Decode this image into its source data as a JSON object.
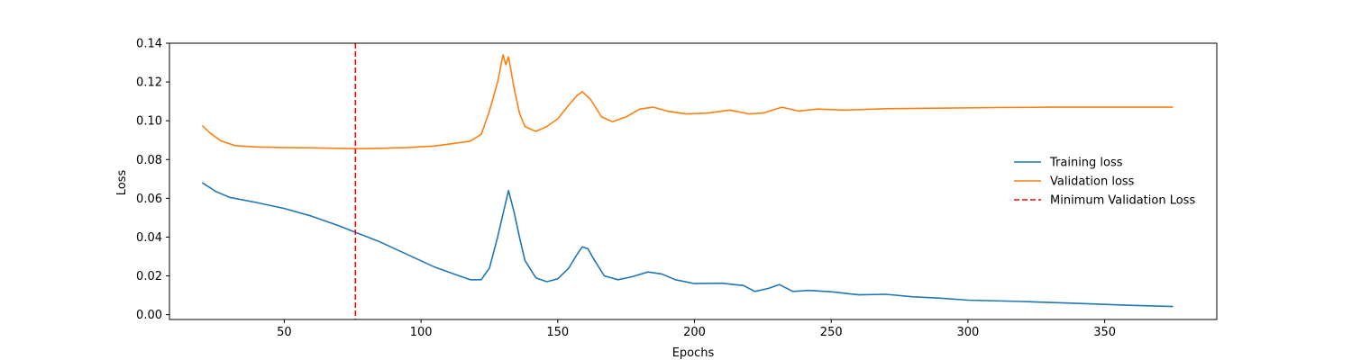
{
  "chart_data": {
    "type": "line",
    "title": "",
    "xlabel": "Epochs",
    "ylabel": "Loss",
    "xlim": [
      8,
      391
    ],
    "ylim": [
      -0.0025,
      0.14
    ],
    "xticks": [
      50,
      100,
      150,
      200,
      250,
      300,
      350
    ],
    "yticks": [
      0.0,
      0.02,
      0.04,
      0.06,
      0.08,
      0.1,
      0.12,
      0.14
    ],
    "ytick_labels": [
      "0.00",
      "0.02",
      "0.04",
      "0.06",
      "0.08",
      "0.10",
      "0.12",
      "0.14"
    ],
    "grid": false,
    "legend_position": "center-right",
    "series": [
      {
        "name": "Training loss",
        "color": "#1f77b4",
        "points": [
          [
            20,
            0.068
          ],
          [
            25,
            0.0635
          ],
          [
            30,
            0.0605
          ],
          [
            40,
            0.0578
          ],
          [
            50,
            0.0548
          ],
          [
            60,
            0.0508
          ],
          [
            70,
            0.0458
          ],
          [
            76,
            0.0425
          ],
          [
            85,
            0.0375
          ],
          [
            95,
            0.031
          ],
          [
            105,
            0.0245
          ],
          [
            112,
            0.021
          ],
          [
            118,
            0.018
          ],
          [
            122,
            0.018
          ],
          [
            125,
            0.024
          ],
          [
            128,
            0.04
          ],
          [
            130,
            0.052
          ],
          [
            132,
            0.064
          ],
          [
            134,
            0.053
          ],
          [
            136,
            0.04
          ],
          [
            138,
            0.028
          ],
          [
            142,
            0.019
          ],
          [
            146,
            0.017
          ],
          [
            150,
            0.0185
          ],
          [
            154,
            0.024
          ],
          [
            157,
            0.031
          ],
          [
            159,
            0.035
          ],
          [
            161,
            0.034
          ],
          [
            163,
            0.029
          ],
          [
            167,
            0.02
          ],
          [
            172,
            0.018
          ],
          [
            177,
            0.0195
          ],
          [
            183,
            0.022
          ],
          [
            188,
            0.021
          ],
          [
            193,
            0.018
          ],
          [
            200,
            0.016
          ],
          [
            210,
            0.0162
          ],
          [
            218,
            0.015
          ],
          [
            222,
            0.012
          ],
          [
            227,
            0.0135
          ],
          [
            231,
            0.0155
          ],
          [
            236,
            0.012
          ],
          [
            242,
            0.0125
          ],
          [
            250,
            0.0118
          ],
          [
            260,
            0.0102
          ],
          [
            270,
            0.0105
          ],
          [
            280,
            0.0092
          ],
          [
            290,
            0.0085
          ],
          [
            300,
            0.0075
          ],
          [
            320,
            0.0068
          ],
          [
            340,
            0.0058
          ],
          [
            360,
            0.0048
          ],
          [
            375,
            0.0042
          ]
        ]
      },
      {
        "name": "Validation loss",
        "color": "#ff7f0e",
        "points": [
          [
            20,
            0.0975
          ],
          [
            23,
            0.0935
          ],
          [
            27,
            0.0895
          ],
          [
            32,
            0.0872
          ],
          [
            40,
            0.0865
          ],
          [
            50,
            0.0862
          ],
          [
            60,
            0.086
          ],
          [
            70,
            0.0858
          ],
          [
            76,
            0.0856
          ],
          [
            85,
            0.0858
          ],
          [
            95,
            0.0862
          ],
          [
            105,
            0.087
          ],
          [
            112,
            0.0883
          ],
          [
            118,
            0.0895
          ],
          [
            122,
            0.093
          ],
          [
            125,
            0.105
          ],
          [
            128,
            0.12
          ],
          [
            130,
            0.134
          ],
          [
            131,
            0.129
          ],
          [
            132,
            0.133
          ],
          [
            134,
            0.117
          ],
          [
            136,
            0.104
          ],
          [
            138,
            0.097
          ],
          [
            142,
            0.0945
          ],
          [
            146,
            0.097
          ],
          [
            150,
            0.101
          ],
          [
            154,
            0.108
          ],
          [
            157,
            0.113
          ],
          [
            159,
            0.115
          ],
          [
            162,
            0.111
          ],
          [
            166,
            0.102
          ],
          [
            170,
            0.0995
          ],
          [
            175,
            0.102
          ],
          [
            180,
            0.106
          ],
          [
            185,
            0.107
          ],
          [
            190,
            0.105
          ],
          [
            197,
            0.1035
          ],
          [
            205,
            0.104
          ],
          [
            213,
            0.1055
          ],
          [
            220,
            0.1035
          ],
          [
            225,
            0.104
          ],
          [
            232,
            0.107
          ],
          [
            238,
            0.105
          ],
          [
            245,
            0.106
          ],
          [
            255,
            0.1055
          ],
          [
            270,
            0.1062
          ],
          [
            290,
            0.1065
          ],
          [
            310,
            0.1068
          ],
          [
            330,
            0.107
          ],
          [
            350,
            0.107
          ],
          [
            375,
            0.107
          ]
        ]
      },
      {
        "name": "Minimum Validation Loss",
        "color": "#ff0000",
        "style": "dashed",
        "x": 76
      }
    ]
  }
}
